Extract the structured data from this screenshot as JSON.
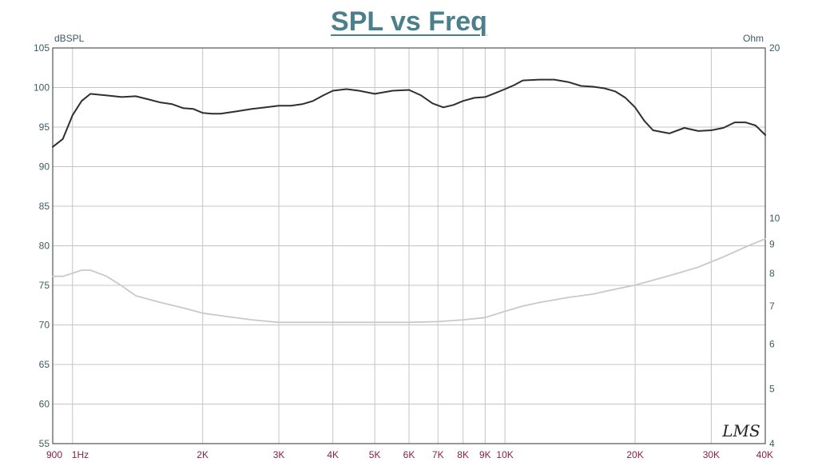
{
  "chart_data": {
    "type": "line",
    "title": "SPL vs Freq",
    "ylabel": "dBSPL",
    "y2label": "Ohm",
    "xscale": "log",
    "xlim": [
      900,
      40000
    ],
    "ylim": [
      55,
      105
    ],
    "y2lim": [
      4,
      20
    ],
    "y2scale": "log",
    "x_tick_labels": [
      {
        "value": 900,
        "label": "900"
      },
      {
        "value": 1000,
        "label": "1Hz"
      },
      {
        "value": 2000,
        "label": "2K"
      },
      {
        "value": 3000,
        "label": "3K"
      },
      {
        "value": 4000,
        "label": "4K"
      },
      {
        "value": 5000,
        "label": "5K"
      },
      {
        "value": 6000,
        "label": "6K"
      },
      {
        "value": 7000,
        "label": "7K"
      },
      {
        "value": 8000,
        "label": "8K"
      },
      {
        "value": 9000,
        "label": "9K"
      },
      {
        "value": 10000,
        "label": "10K"
      },
      {
        "value": 20000,
        "label": "20K"
      },
      {
        "value": 30000,
        "label": "30K"
      },
      {
        "value": 40000,
        "label": "40K"
      }
    ],
    "y_ticks": [
      105,
      100,
      95,
      90,
      85,
      80,
      75,
      70,
      65,
      60,
      55
    ],
    "y2_ticks": [
      20,
      10,
      9,
      8,
      7,
      6,
      5,
      4
    ],
    "grid": true,
    "series": [
      {
        "color": "#2f2f2f",
        "axis": "left",
        "x": [
          900,
          950,
          1000,
          1050,
          1100,
          1200,
          1300,
          1400,
          1500,
          1600,
          1700,
          1800,
          1900,
          2000,
          2100,
          2200,
          2400,
          2600,
          2800,
          3000,
          3200,
          3400,
          3600,
          3800,
          4000,
          4300,
          4600,
          5000,
          5500,
          6000,
          6400,
          6800,
          7200,
          7600,
          8000,
          8500,
          9000,
          9500,
          10000,
          10500,
          11000,
          12000,
          13000,
          14000,
          15000,
          16000,
          17000,
          18000,
          19000,
          20000,
          21000,
          22000,
          24000,
          26000,
          28000,
          30000,
          32000,
          34000,
          36000,
          38000,
          40000
        ],
        "y": [
          92.5,
          93.5,
          96.5,
          98.3,
          99.2,
          99.0,
          98.8,
          98.9,
          98.5,
          98.1,
          97.9,
          97.4,
          97.3,
          96.8,
          96.7,
          96.7,
          97.0,
          97.3,
          97.5,
          97.7,
          97.7,
          97.9,
          98.3,
          99.0,
          99.6,
          99.8,
          99.6,
          99.2,
          99.6,
          99.7,
          99.0,
          98.0,
          97.5,
          97.8,
          98.3,
          98.7,
          98.8,
          99.3,
          99.8,
          100.3,
          100.9,
          101.0,
          101.0,
          100.7,
          100.2,
          100.1,
          99.9,
          99.5,
          98.7,
          97.5,
          95.8,
          94.6,
          94.2,
          94.9,
          94.5,
          94.6,
          94.9,
          95.6,
          95.6,
          95.2,
          94.0
        ]
      },
      {
        "color": "#c9c9c9",
        "axis": "right",
        "x": [
          900,
          950,
          1000,
          1050,
          1100,
          1200,
          1300,
          1400,
          1600,
          1800,
          2000,
          2300,
          2600,
          3000,
          3500,
          4000,
          5000,
          6000,
          7000,
          8000,
          9000,
          10000,
          11000,
          12000,
          14000,
          16000,
          18000,
          20000,
          24000,
          28000,
          32000,
          36000,
          40000
        ],
        "y": [
          7.9,
          7.9,
          8.0,
          8.1,
          8.1,
          7.9,
          7.6,
          7.3,
          7.1,
          6.95,
          6.8,
          6.7,
          6.62,
          6.55,
          6.55,
          6.55,
          6.55,
          6.55,
          6.57,
          6.62,
          6.68,
          6.85,
          7.0,
          7.1,
          7.25,
          7.35,
          7.5,
          7.62,
          7.92,
          8.2,
          8.55,
          8.9,
          9.2
        ]
      }
    ],
    "annotations": [
      "LMS"
    ]
  }
}
